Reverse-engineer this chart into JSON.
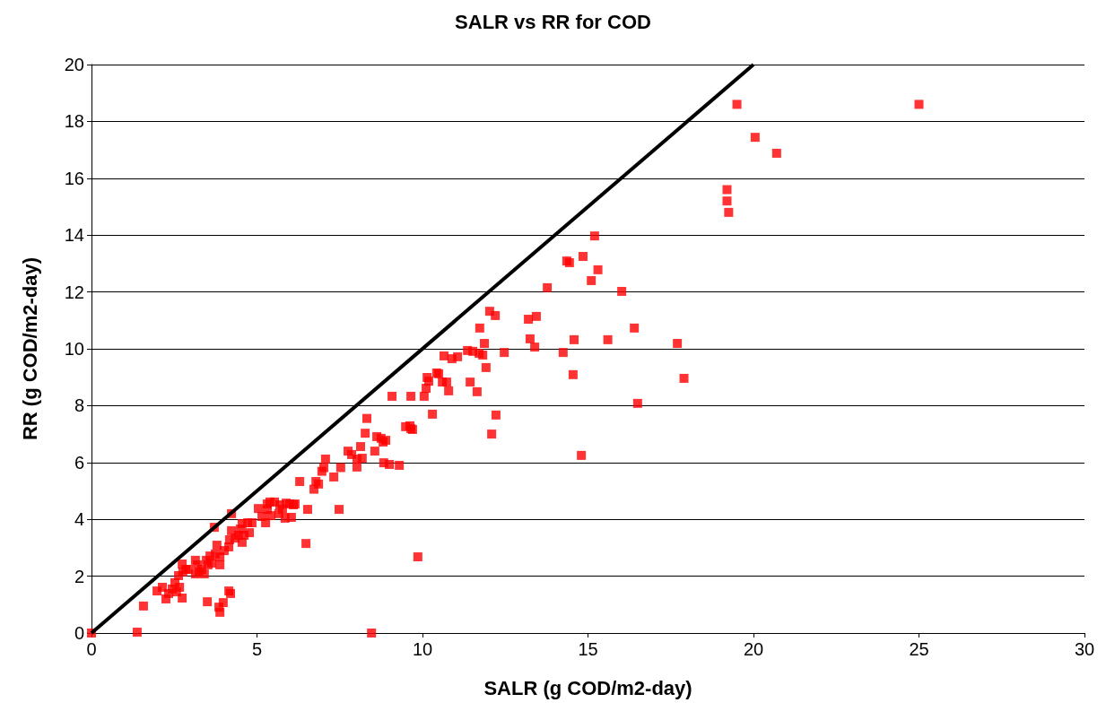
{
  "chart_data": {
    "type": "scatter",
    "title": "SALR vs RR for COD",
    "xlabel": "SALR (g COD/m2-day)",
    "ylabel": "RR (g COD/m2-day)",
    "xlim": [
      0,
      30
    ],
    "xticks": [
      0,
      5,
      10,
      15,
      20,
      25,
      30
    ],
    "ylim": [
      0,
      20
    ],
    "yticks": [
      0,
      2,
      4,
      6,
      8,
      10,
      12,
      14,
      16,
      18,
      20
    ],
    "grid": "y",
    "marker": "square",
    "series": [
      {
        "type": "scatter",
        "color": "#ff0000",
        "x": [
          0,
          1.38,
          1.57,
          1.98,
          2.14,
          2.25,
          2.33,
          2.44,
          2.52,
          2.57,
          2.66,
          2.74,
          2.63,
          2.76,
          2.85,
          2.74,
          2.93,
          3.14,
          3.2,
          3.14,
          3.25,
          3.33,
          3.41,
          3.47,
          3.52,
          3.58,
          3.63,
          3.74,
          3.5,
          3.85,
          3.88,
          3.98,
          4.15,
          4.2,
          3.88,
          3.71,
          3.79,
          3.88,
          4.01,
          4.15,
          4.23,
          4.17,
          4.23,
          4.34,
          4.44,
          4.5,
          4.55,
          4.55,
          4.61,
          4.72,
          4.77,
          4.85,
          5.04,
          5.15,
          5.26,
          5.31,
          5.39,
          5.31,
          5.42,
          5.53,
          5.66,
          5.69,
          5.77,
          5.85,
          5.88,
          5.99,
          6.04,
          6.1,
          6.15,
          6.29,
          6.48,
          6.53,
          6.72,
          6.78,
          6.86,
          6.96,
          7.02,
          7.07,
          7.32,
          7.48,
          7.53,
          7.75,
          7.86,
          8.02,
          8.13,
          8.02,
          8.18,
          8.27,
          8.32,
          8.46,
          8.56,
          8.62,
          8.75,
          8.81,
          8.89,
          8.83,
          9.0,
          9.08,
          9.3,
          9.49,
          9.62,
          9.65,
          9.65,
          9.7,
          9.86,
          10.05,
          10.11,
          10.14,
          10.19,
          10.3,
          10.43,
          10.49,
          10.6,
          10.65,
          10.73,
          10.79,
          10.89,
          11.06,
          11.36,
          11.44,
          11.52,
          11.65,
          11.71,
          11.73,
          11.82,
          11.87,
          11.92,
          12.03,
          12.09,
          12.2,
          12.22,
          12.47,
          13.2,
          13.25,
          13.39,
          13.44,
          13.77,
          14.25,
          14.36,
          14.44,
          14.55,
          14.58,
          14.8,
          14.85,
          15.1,
          15.2,
          15.3,
          16.02,
          15.6,
          16.4,
          16.5,
          17.7,
          17.9,
          19.2,
          19.2,
          19.25,
          19.5,
          20.05,
          20.7,
          25.0
        ],
        "values": [
          0,
          0.03,
          0.95,
          1.48,
          1.61,
          1.2,
          1.39,
          1.55,
          1.77,
          1.45,
          1.61,
          1.23,
          2.02,
          2.15,
          2.24,
          2.43,
          2.24,
          2.56,
          2.4,
          2.08,
          2.15,
          2.24,
          2.08,
          2.56,
          2.4,
          2.71,
          2.46,
          2.78,
          1.1,
          0.91,
          0.73,
          1.07,
          1.48,
          1.39,
          2.4,
          3.72,
          3.09,
          2.68,
          2.9,
          3.03,
          3.6,
          3.28,
          4.2,
          3.34,
          3.44,
          3.66,
          3.19,
          3.85,
          3.44,
          3.88,
          3.53,
          3.88,
          4.38,
          4.1,
          3.88,
          4.54,
          4.61,
          4.35,
          4.13,
          4.61,
          4.2,
          4.51,
          4.35,
          4.04,
          4.57,
          4.54,
          4.07,
          4.51,
          4.54,
          5.33,
          3.15,
          4.35,
          5.06,
          5.33,
          5.24,
          5.69,
          5.82,
          6.12,
          5.49,
          4.35,
          5.82,
          6.4,
          6.28,
          6.12,
          6.56,
          5.84,
          6.15,
          7.03,
          7.55,
          0,
          6.4,
          6.91,
          6.85,
          6.72,
          6.78,
          5.99,
          5.93,
          8.33,
          5.9,
          7.26,
          7.29,
          7.19,
          8.33,
          7.16,
          2.68,
          8.33,
          8.61,
          8.99,
          8.86,
          7.7,
          9.15,
          9.12,
          8.83,
          9.75,
          8.83,
          8.52,
          9.65,
          9.72,
          9.94,
          8.83,
          9.91,
          8.49,
          9.84,
          10.73,
          9.78,
          10.19,
          9.34,
          11.32,
          7.0,
          11.17,
          7.67,
          9.87,
          11.04,
          10.35,
          10.06,
          11.14,
          12.15,
          9.87,
          13.09,
          13.03,
          9.09,
          10.32,
          6.25,
          13.25,
          12.4,
          13.97,
          12.78,
          12.02,
          10.32,
          10.73,
          8.08,
          10.19,
          8.96,
          15.6,
          15.2,
          14.8,
          18.6,
          17.44,
          16.88,
          18.6
        ]
      },
      {
        "type": "line",
        "color": "#000000",
        "x": [
          0,
          20
        ],
        "values": [
          0,
          20
        ],
        "marker": "none",
        "line_style": "solid"
      }
    ]
  }
}
